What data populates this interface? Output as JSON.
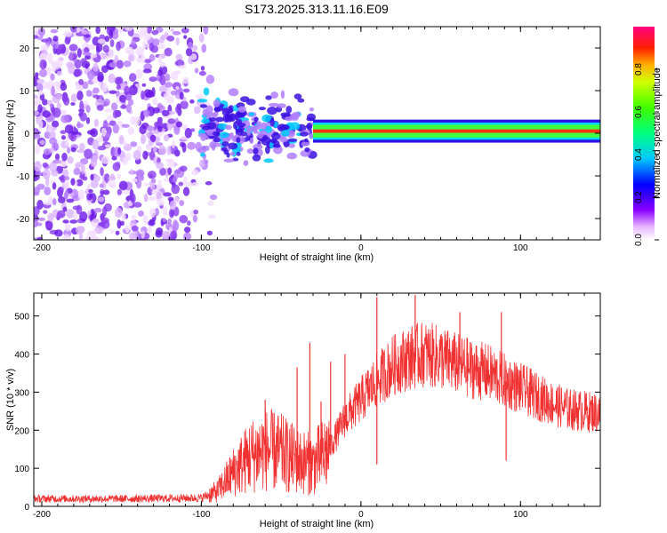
{
  "title": "S173.2025.313.11.16.E09",
  "chart_data": [
    {
      "type": "heatmap",
      "name": "spectrogram",
      "xlabel": "Height of straight line (km)",
      "ylabel": "Frequency (Hz)",
      "xlim": [
        -205,
        150
      ],
      "ylim": [
        -25,
        25
      ],
      "xticks": [
        -200,
        -100,
        0,
        100
      ],
      "yticks": [
        -20,
        -10,
        0,
        10,
        20
      ],
      "colorbar": {
        "label": "Normalized spectral amplitude",
        "range": [
          0,
          1
        ],
        "ticks": [
          0.0,
          0.2,
          0.4,
          0.6,
          0.8
        ]
      },
      "regions": [
        {
          "name": "noise",
          "x_range": [
            -205,
            -92
          ],
          "freq_range": [
            -25,
            25
          ],
          "amplitude": 0.1
        },
        {
          "name": "onset",
          "x_range": [
            -100,
            -30
          ],
          "freq_range": [
            -8,
            10
          ],
          "amplitude": 0.25
        },
        {
          "name": "signal",
          "x_range": [
            -30,
            150
          ],
          "freq_range": [
            -1,
            2
          ],
          "amplitude": 0.95
        }
      ]
    },
    {
      "type": "line",
      "name": "snr",
      "xlabel": "Height of straight line (km)",
      "ylabel": "SNR (10 * v/v)",
      "xlim": [
        -205,
        150
      ],
      "ylim": [
        0,
        560
      ],
      "xticks": [
        -200,
        -100,
        0,
        100
      ],
      "yticks": [
        0,
        100,
        200,
        300,
        400,
        500
      ],
      "color": "#f03232",
      "envelope": {
        "x": [
          -205,
          -150,
          -100,
          -90,
          -80,
          -70,
          -60,
          -50,
          -40,
          -30,
          -20,
          -10,
          0,
          10,
          20,
          30,
          40,
          50,
          60,
          70,
          80,
          90,
          100,
          110,
          120,
          130,
          140,
          150
        ],
        "y": [
          20,
          20,
          22,
          40,
          90,
          130,
          150,
          140,
          120,
          110,
          150,
          230,
          280,
          330,
          370,
          390,
          400,
          390,
          375,
          360,
          350,
          330,
          310,
          290,
          270,
          255,
          250,
          245
        ]
      },
      "spikes": [
        {
          "x": -60,
          "y": 280
        },
        {
          "x": -52,
          "y": 230
        },
        {
          "x": -40,
          "y": 365
        },
        {
          "x": -32,
          "y": 430
        },
        {
          "x": -25,
          "y": 275
        },
        {
          "x": -19,
          "y": 380
        },
        {
          "x": -10,
          "y": 400
        },
        {
          "x": 10,
          "y": 550
        },
        {
          "x": 10,
          "y": 110
        },
        {
          "x": 34,
          "y": 555
        },
        {
          "x": 62,
          "y": 510
        },
        {
          "x": 88,
          "y": 510
        },
        {
          "x": 91,
          "y": 120
        }
      ]
    }
  ]
}
